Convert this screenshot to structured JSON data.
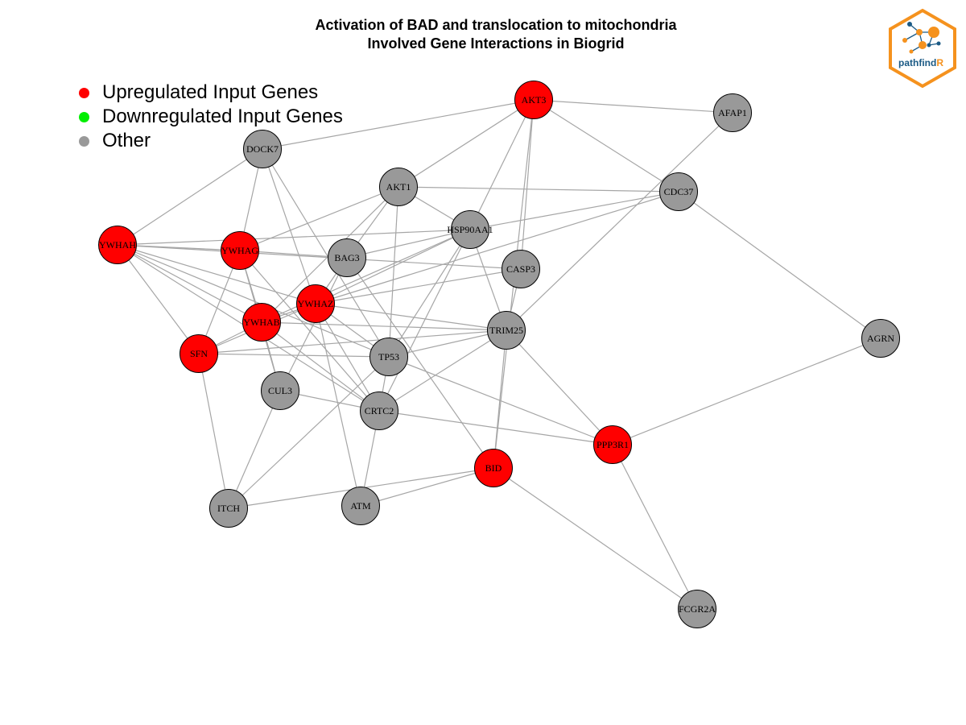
{
  "title_line1": "Activation of BAD and translocation to mitochondria",
  "title_line2": "Involved Gene Interactions in Biogrid",
  "legend": {
    "up": {
      "label": "Upregulated Input Genes",
      "color": "#ff0000"
    },
    "down": {
      "label": "Downregulated Input Genes",
      "color": "#00ee00"
    },
    "other": {
      "label": "Other",
      "color": "#999999"
    }
  },
  "logo_text": {
    "main": "pathfind",
    "accent": "R"
  },
  "colors": {
    "up": "#ff0000",
    "other": "#999999",
    "edge": "#a6a6a6",
    "logo_orange": "#f5921e",
    "logo_blue": "#1b5a85"
  },
  "nodes": [
    {
      "id": "AKT3",
      "type": "up"
    },
    {
      "id": "AFAP1",
      "type": "other"
    },
    {
      "id": "DOCK7",
      "type": "other"
    },
    {
      "id": "AKT1",
      "type": "other"
    },
    {
      "id": "CDC37",
      "type": "other"
    },
    {
      "id": "HSP90AA1",
      "type": "other"
    },
    {
      "id": "YWHAH",
      "type": "up"
    },
    {
      "id": "YWHAG",
      "type": "up"
    },
    {
      "id": "BAG3",
      "type": "other"
    },
    {
      "id": "CASP3",
      "type": "other"
    },
    {
      "id": "YWHAZ",
      "type": "up"
    },
    {
      "id": "YWHAB",
      "type": "up"
    },
    {
      "id": "TRIM25",
      "type": "other"
    },
    {
      "id": "AGRN",
      "type": "other"
    },
    {
      "id": "SFN",
      "type": "up"
    },
    {
      "id": "TP53",
      "type": "other"
    },
    {
      "id": "CUL3",
      "type": "other"
    },
    {
      "id": "CRTC2",
      "type": "other"
    },
    {
      "id": "PPP3R1",
      "type": "up"
    },
    {
      "id": "BID",
      "type": "up"
    },
    {
      "id": "ITCH",
      "type": "other"
    },
    {
      "id": "ATM",
      "type": "other"
    },
    {
      "id": "FCGR2A",
      "type": "other"
    }
  ],
  "edges": [
    [
      "AKT3",
      "AFAP1"
    ],
    [
      "AKT3",
      "DOCK7"
    ],
    [
      "AKT3",
      "AKT1"
    ],
    [
      "AKT3",
      "CDC37"
    ],
    [
      "AKT3",
      "HSP90AA1"
    ],
    [
      "AKT3",
      "CASP3"
    ],
    [
      "AKT3",
      "BID"
    ],
    [
      "AFAP1",
      "TRIM25"
    ],
    [
      "DOCK7",
      "YWHAH"
    ],
    [
      "DOCK7",
      "YWHAG"
    ],
    [
      "DOCK7",
      "YWHAZ"
    ],
    [
      "DOCK7",
      "TP53"
    ],
    [
      "AKT1",
      "CDC37"
    ],
    [
      "AKT1",
      "HSP90AA1"
    ],
    [
      "AKT1",
      "YWHAG"
    ],
    [
      "AKT1",
      "BAG3"
    ],
    [
      "AKT1",
      "YWHAB"
    ],
    [
      "AKT1",
      "TP53"
    ],
    [
      "CDC37",
      "HSP90AA1"
    ],
    [
      "CDC37",
      "AGRN"
    ],
    [
      "CDC37",
      "YWHAZ"
    ],
    [
      "HSP90AA1",
      "BAG3"
    ],
    [
      "HSP90AA1",
      "YWHAZ"
    ],
    [
      "HSP90AA1",
      "YWHAB"
    ],
    [
      "HSP90AA1",
      "TP53"
    ],
    [
      "HSP90AA1",
      "TRIM25"
    ],
    [
      "HSP90AA1",
      "YWHAH"
    ],
    [
      "HSP90AA1",
      "CRTC2"
    ],
    [
      "YWHAH",
      "YWHAG"
    ],
    [
      "YWHAH",
      "CASP3"
    ],
    [
      "YWHAH",
      "YWHAZ"
    ],
    [
      "YWHAH",
      "YWHAB"
    ],
    [
      "YWHAH",
      "SFN"
    ],
    [
      "YWHAH",
      "TP53"
    ],
    [
      "YWHAH",
      "CRTC2"
    ],
    [
      "YWHAG",
      "BAG3"
    ],
    [
      "YWHAG",
      "YWHAB"
    ],
    [
      "YWHAG",
      "SFN"
    ],
    [
      "YWHAG",
      "CUL3"
    ],
    [
      "YWHAG",
      "CRTC2"
    ],
    [
      "BAG3",
      "YWHAZ"
    ],
    [
      "BAG3",
      "CUL3"
    ],
    [
      "BAG3",
      "BID"
    ],
    [
      "CASP3",
      "YWHAZ"
    ],
    [
      "CASP3",
      "TRIM25"
    ],
    [
      "YWHAZ",
      "YWHAB"
    ],
    [
      "YWHAZ",
      "TRIM25"
    ],
    [
      "YWHAZ",
      "TP53"
    ],
    [
      "YWHAZ",
      "CRTC2"
    ],
    [
      "YWHAZ",
      "ATM"
    ],
    [
      "YWHAZ",
      "SFN"
    ],
    [
      "YWHAB",
      "TRIM25"
    ],
    [
      "YWHAB",
      "SFN"
    ],
    [
      "YWHAB",
      "CUL3"
    ],
    [
      "YWHAB",
      "CRTC2"
    ],
    [
      "TRIM25",
      "SFN"
    ],
    [
      "TRIM25",
      "TP53"
    ],
    [
      "TRIM25",
      "CRTC2"
    ],
    [
      "TRIM25",
      "BID"
    ],
    [
      "TRIM25",
      "PPP3R1"
    ],
    [
      "AGRN",
      "PPP3R1"
    ],
    [
      "SFN",
      "TP53"
    ],
    [
      "SFN",
      "ITCH"
    ],
    [
      "TP53",
      "PPP3R1"
    ],
    [
      "TP53",
      "ITCH"
    ],
    [
      "TP53",
      "CRTC2"
    ],
    [
      "CUL3",
      "CRTC2"
    ],
    [
      "CUL3",
      "ITCH"
    ],
    [
      "CRTC2",
      "PPP3R1"
    ],
    [
      "CRTC2",
      "ATM"
    ],
    [
      "PPP3R1",
      "FCGR2A"
    ],
    [
      "BID",
      "ATM"
    ],
    [
      "BID",
      "ITCH"
    ],
    [
      "BID",
      "FCGR2A"
    ]
  ]
}
